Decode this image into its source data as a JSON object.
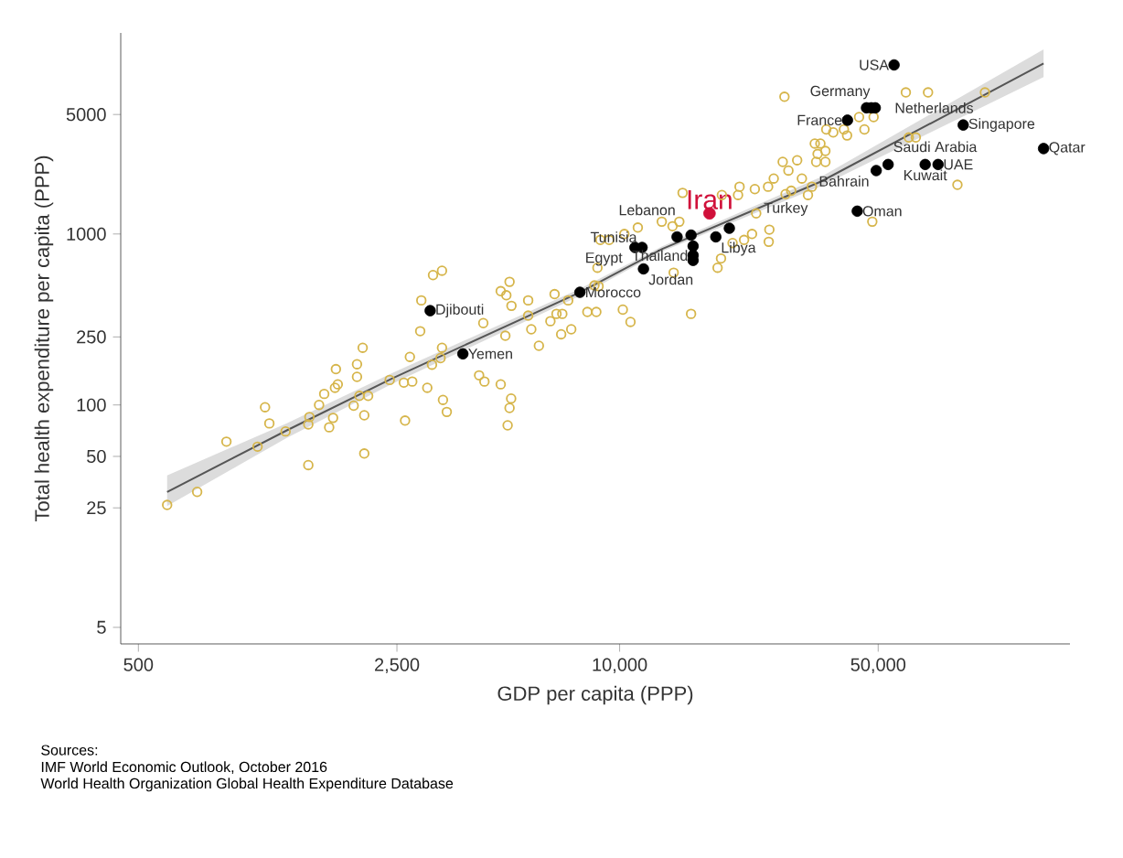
{
  "chart_data": {
    "type": "scatter",
    "xlabel": "GDP per capita (PPP)",
    "ylabel": "Total health expenditure per capita (PPP)",
    "log": "xy",
    "marker": "circle",
    "xlim": [
      448,
      165000
    ],
    "ylim": [
      4,
      15000
    ],
    "xticks": [
      {
        "value": 500,
        "label": "500"
      },
      {
        "value": 2500,
        "label": "2,500"
      },
      {
        "value": 10000,
        "label": "10,000"
      },
      {
        "value": 50000,
        "label": "50,000"
      }
    ],
    "yticks": [
      5,
      25,
      50,
      100,
      250,
      1000,
      5000
    ],
    "series": [
      {
        "type": "scatter",
        "color": "#d6b54a",
        "x": [
          3130,
          3310,
          2910,
          2890,
          2020,
          1950,
          1710,
          1950,
          1730,
          1700,
          1590,
          1540,
          1100,
          1130,
          1450,
          1440,
          1680,
          1640,
          1250,
          865,
          1050,
          2040,
          1910,
          2090,
          1980,
          2390,
          2610,
          2750,
          3020,
          2710,
          3110,
          3310,
          3280,
          3330,
          3410,
          2630,
          4170,
          4310,
          4770,
          5090,
          5040,
          4980,
          4280,
          4770,
          5040,
          4940,
          5100,
          5660,
          5660,
          5770,
          4910,
          6050,
          6670,
          6750,
          6500,
          7000,
          6950,
          7400,
          7260,
          8180,
          8650,
          8870,
          2040,
          598,
          721,
          1440,
          27900,
          59400,
          68200,
          97200,
          44400,
          48600,
          45900,
          40400,
          41200,
          36200,
          37800,
          34900,
          36000,
          33700,
          34300,
          34000,
          36000,
          30200,
          27600,
          28600,
          26100,
          31100,
          25200,
          33100,
          32300,
          29100,
          28100,
          23200,
          21100,
          20900,
          18900,
          14800,
          60500,
          63200,
          81900,
          48200,
          25400,
          23400,
          22800,
          25300,
          20200,
          18400,
          15600,
          10700,
          10200,
          14500,
          13000,
          13900,
          11200,
          10300,
          9370,
          8710,
          14000,
          18800,
          21700,
          8770,
          8550
        ],
        "values": [
          575,
          610,
          409,
          270,
          216,
          173,
          162,
          146,
          132,
          126,
          116,
          100,
          97,
          78,
          85,
          77,
          84,
          74,
          70,
          61,
          57,
          87,
          99,
          113,
          113,
          140,
          135,
          137,
          126,
          191,
          172,
          216,
          188,
          107,
          91,
          81,
          149,
          137,
          132,
          109,
          96,
          76,
          301,
          463,
          525,
          438,
          380,
          409,
          333,
          277,
          254,
          222,
          445,
          341,
          309,
          341,
          259,
          277,
          409,
          350,
          350,
          923,
          52,
          26,
          31,
          44.5,
          6350,
          6730,
          6730,
          6730,
          4830,
          4830,
          4090,
          4090,
          3770,
          4090,
          3930,
          3380,
          3060,
          3380,
          2940,
          2640,
          2640,
          2700,
          2640,
          2350,
          2110,
          2110,
          1890,
          1890,
          1690,
          1790,
          1710,
          1830,
          1890,
          1690,
          1690,
          1740,
          3670,
          3670,
          1940,
          1180,
          1060,
          1320,
          1000,
          900,
          885,
          635,
          341,
          306,
          361,
          1180,
          1180,
          1110,
          1090,
          1000,
          923,
          635,
          594,
          719,
          923,
          495,
          500
        ]
      },
      {
        "type": "scatter",
        "color": "#000000",
        "x": [
          55200,
          49100,
          47900,
          46500,
          41300,
          84900,
          49400,
          53200,
          67000,
          72600,
          140000,
          43900,
          14300,
          15600,
          18200,
          19800,
          15800,
          15800,
          15800,
          11600,
          11500,
          11000,
          7810,
          3075,
          3770
        ],
        "values": [
          9750,
          5470,
          5470,
          5470,
          4630,
          4340,
          2350,
          2550,
          2550,
          2550,
          3160,
          1360,
          962,
          985,
          962,
          1080,
          849,
          750,
          701,
          625,
          834,
          834,
          456,
          356,
          199
        ]
      },
      {
        "type": "scatter",
        "name": "Iran",
        "color": "#d0103a",
        "x": [
          17500
        ],
        "values": [
          1320
        ]
      },
      {
        "type": "line",
        "color": "#555555",
        "marker": "none",
        "line_style": "solid",
        "x": [
          598,
          1256,
          2430,
          7810,
          13000,
          34900,
          140000
        ],
        "values": [
          31,
          70.8,
          143,
          456,
          815,
          2020,
          9930
        ],
        "lower": [
          25.6,
          64,
          133,
          435,
          790,
          1900,
          8280
        ],
        "upper": [
          38.7,
          78,
          154,
          478,
          845,
          2150,
          12000
        ]
      }
    ],
    "annotations": [
      "Sources:",
      "IMF World Economic Outlook, October 2016",
      "World Health Organization Global Health Expenditure Database",
      {
        "text": "USA",
        "x": 55200,
        "y": 9750
      },
      {
        "text": "Germany",
        "x": 49100,
        "y": 5470
      },
      {
        "text": "Netherlands",
        "x": 47900,
        "y": 5470
      },
      {
        "text": "France",
        "x": 41300,
        "y": 4630
      },
      {
        "text": "Singapore",
        "x": 84900,
        "y": 4340
      },
      {
        "text": "Bahrain",
        "x": 49400,
        "y": 2350
      },
      {
        "text": "Saudi Arabia",
        "x": 53200,
        "y": 2550
      },
      {
        "text": "UAE",
        "x": 72600,
        "y": 2550
      },
      {
        "text": "Kuwait",
        "x": 67000,
        "y": 2550
      },
      {
        "text": "Qatar",
        "x": 140000,
        "y": 3160
      },
      {
        "text": "Oman",
        "x": 43900,
        "y": 1360
      },
      {
        "text": "Lebanon",
        "x": 14300,
        "y": 962
      },
      {
        "text": "Turkey",
        "x": 19800,
        "y": 1080
      },
      {
        "text": "Libya",
        "x": 18200,
        "y": 962
      },
      {
        "text": "Thailand",
        "x": 15800,
        "y": 750
      },
      {
        "text": "Jordan",
        "x": 11600,
        "y": 625
      },
      {
        "text": "Tunisia",
        "x": 11500,
        "y": 834
      },
      {
        "text": "Egypt",
        "x": 11000,
        "y": 834
      },
      {
        "text": "Morocco",
        "x": 7810,
        "y": 456
      },
      {
        "text": "Djibouti",
        "x": 3075,
        "y": 356
      },
      {
        "text": "Yemen",
        "x": 3770,
        "y": 199
      }
    ]
  }
}
